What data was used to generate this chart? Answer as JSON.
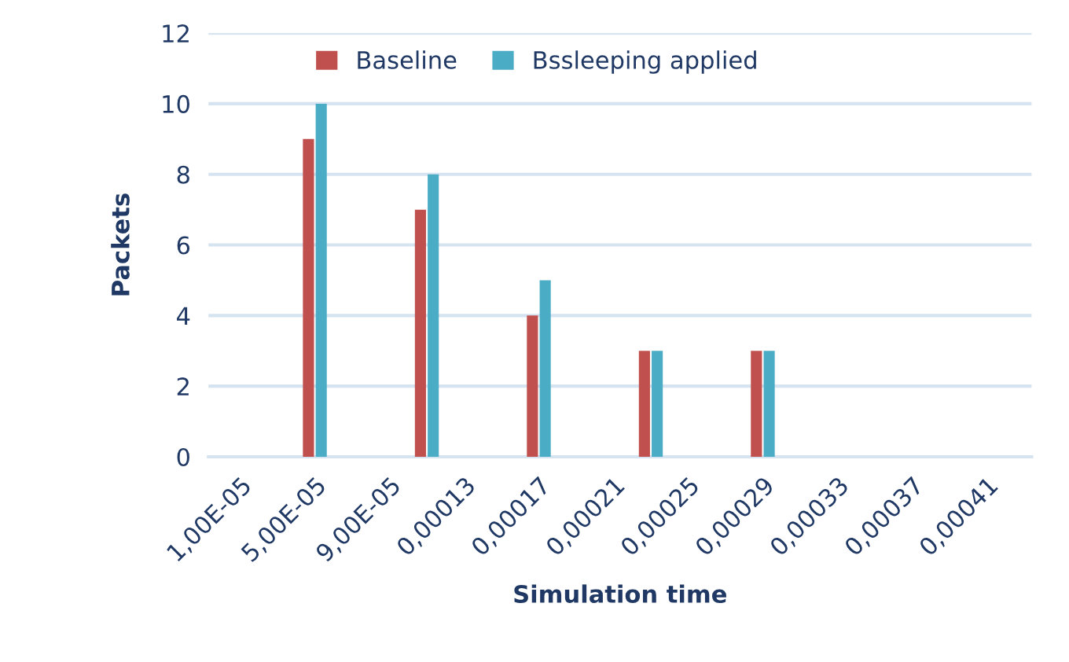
{
  "chart_data": {
    "type": "bar",
    "xlabel": "Simulation time",
    "ylabel": "Packets",
    "x": [
      5e-05,
      0.00011,
      0.00017,
      0.00023,
      0.00029
    ],
    "series": [
      {
        "name": "Baseline",
        "color": "#c0504d",
        "values": [
          9,
          7,
          4,
          3,
          3
        ]
      },
      {
        "name": "Bssleeping applied",
        "color": "#4bacc6",
        "values": [
          10,
          8,
          5,
          3,
          3
        ]
      }
    ],
    "xlim": [
      -7e-06,
      0.000434
    ],
    "xticks": [
      {
        "value": 1e-05,
        "label": "1,00E-05"
      },
      {
        "value": 5e-05,
        "label": "5,00E-05"
      },
      {
        "value": 9e-05,
        "label": "9,00E-05"
      },
      {
        "value": 0.00013,
        "label": "0,00013"
      },
      {
        "value": 0.00017,
        "label": "0,00017"
      },
      {
        "value": 0.00021,
        "label": "0,00021"
      },
      {
        "value": 0.00025,
        "label": "0,00025"
      },
      {
        "value": 0.00029,
        "label": "0,00029"
      },
      {
        "value": 0.00033,
        "label": "0,00033"
      },
      {
        "value": 0.00037,
        "label": "0,00037"
      },
      {
        "value": 0.00041,
        "label": "0,00041"
      }
    ],
    "ylim": [
      0,
      12
    ],
    "yticks": [
      0,
      2,
      4,
      6,
      8,
      10,
      12
    ],
    "grid": "y",
    "legend": "top"
  }
}
